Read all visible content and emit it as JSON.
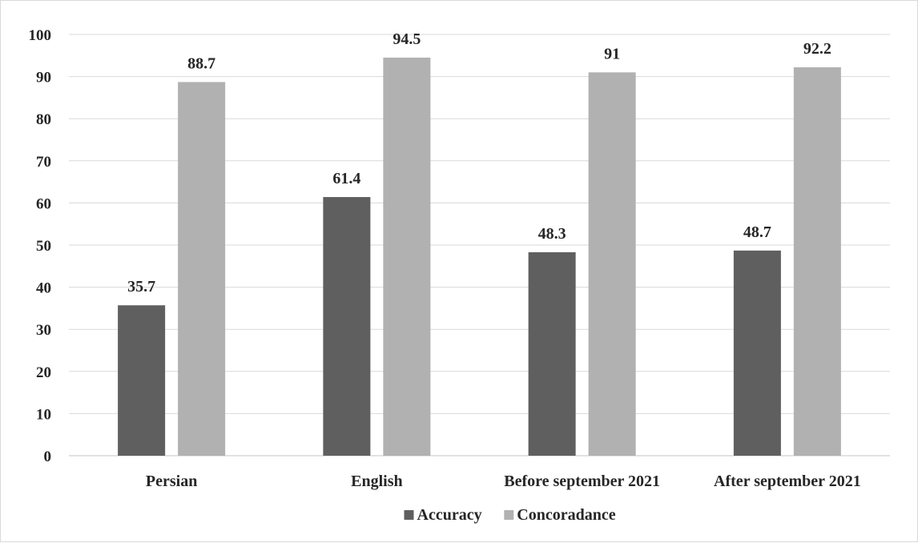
{
  "chart_data": {
    "type": "bar",
    "categories": [
      "Persian",
      "English",
      "Before september 2021",
      "After september 2021"
    ],
    "series": [
      {
        "name": "Accuracy",
        "values": [
          35.7,
          61.4,
          48.3,
          48.7
        ],
        "labels": [
          "35.7",
          "61.4",
          "48.3",
          "48.7"
        ],
        "color": "#5f5f5f"
      },
      {
        "name": "Concoradance",
        "values": [
          88.7,
          94.5,
          91,
          92.2
        ],
        "labels": [
          "88.7",
          "94.5",
          "91",
          "92.2"
        ],
        "color": "#b1b1b1"
      }
    ],
    "ylim": [
      0,
      100
    ],
    "yticks": [
      "0",
      "10",
      "20",
      "30",
      "40",
      "50",
      "60",
      "70",
      "80",
      "90",
      "100"
    ],
    "grid": true,
    "legend_position": "bottom",
    "title": "",
    "xlabel": "",
    "ylabel": ""
  }
}
